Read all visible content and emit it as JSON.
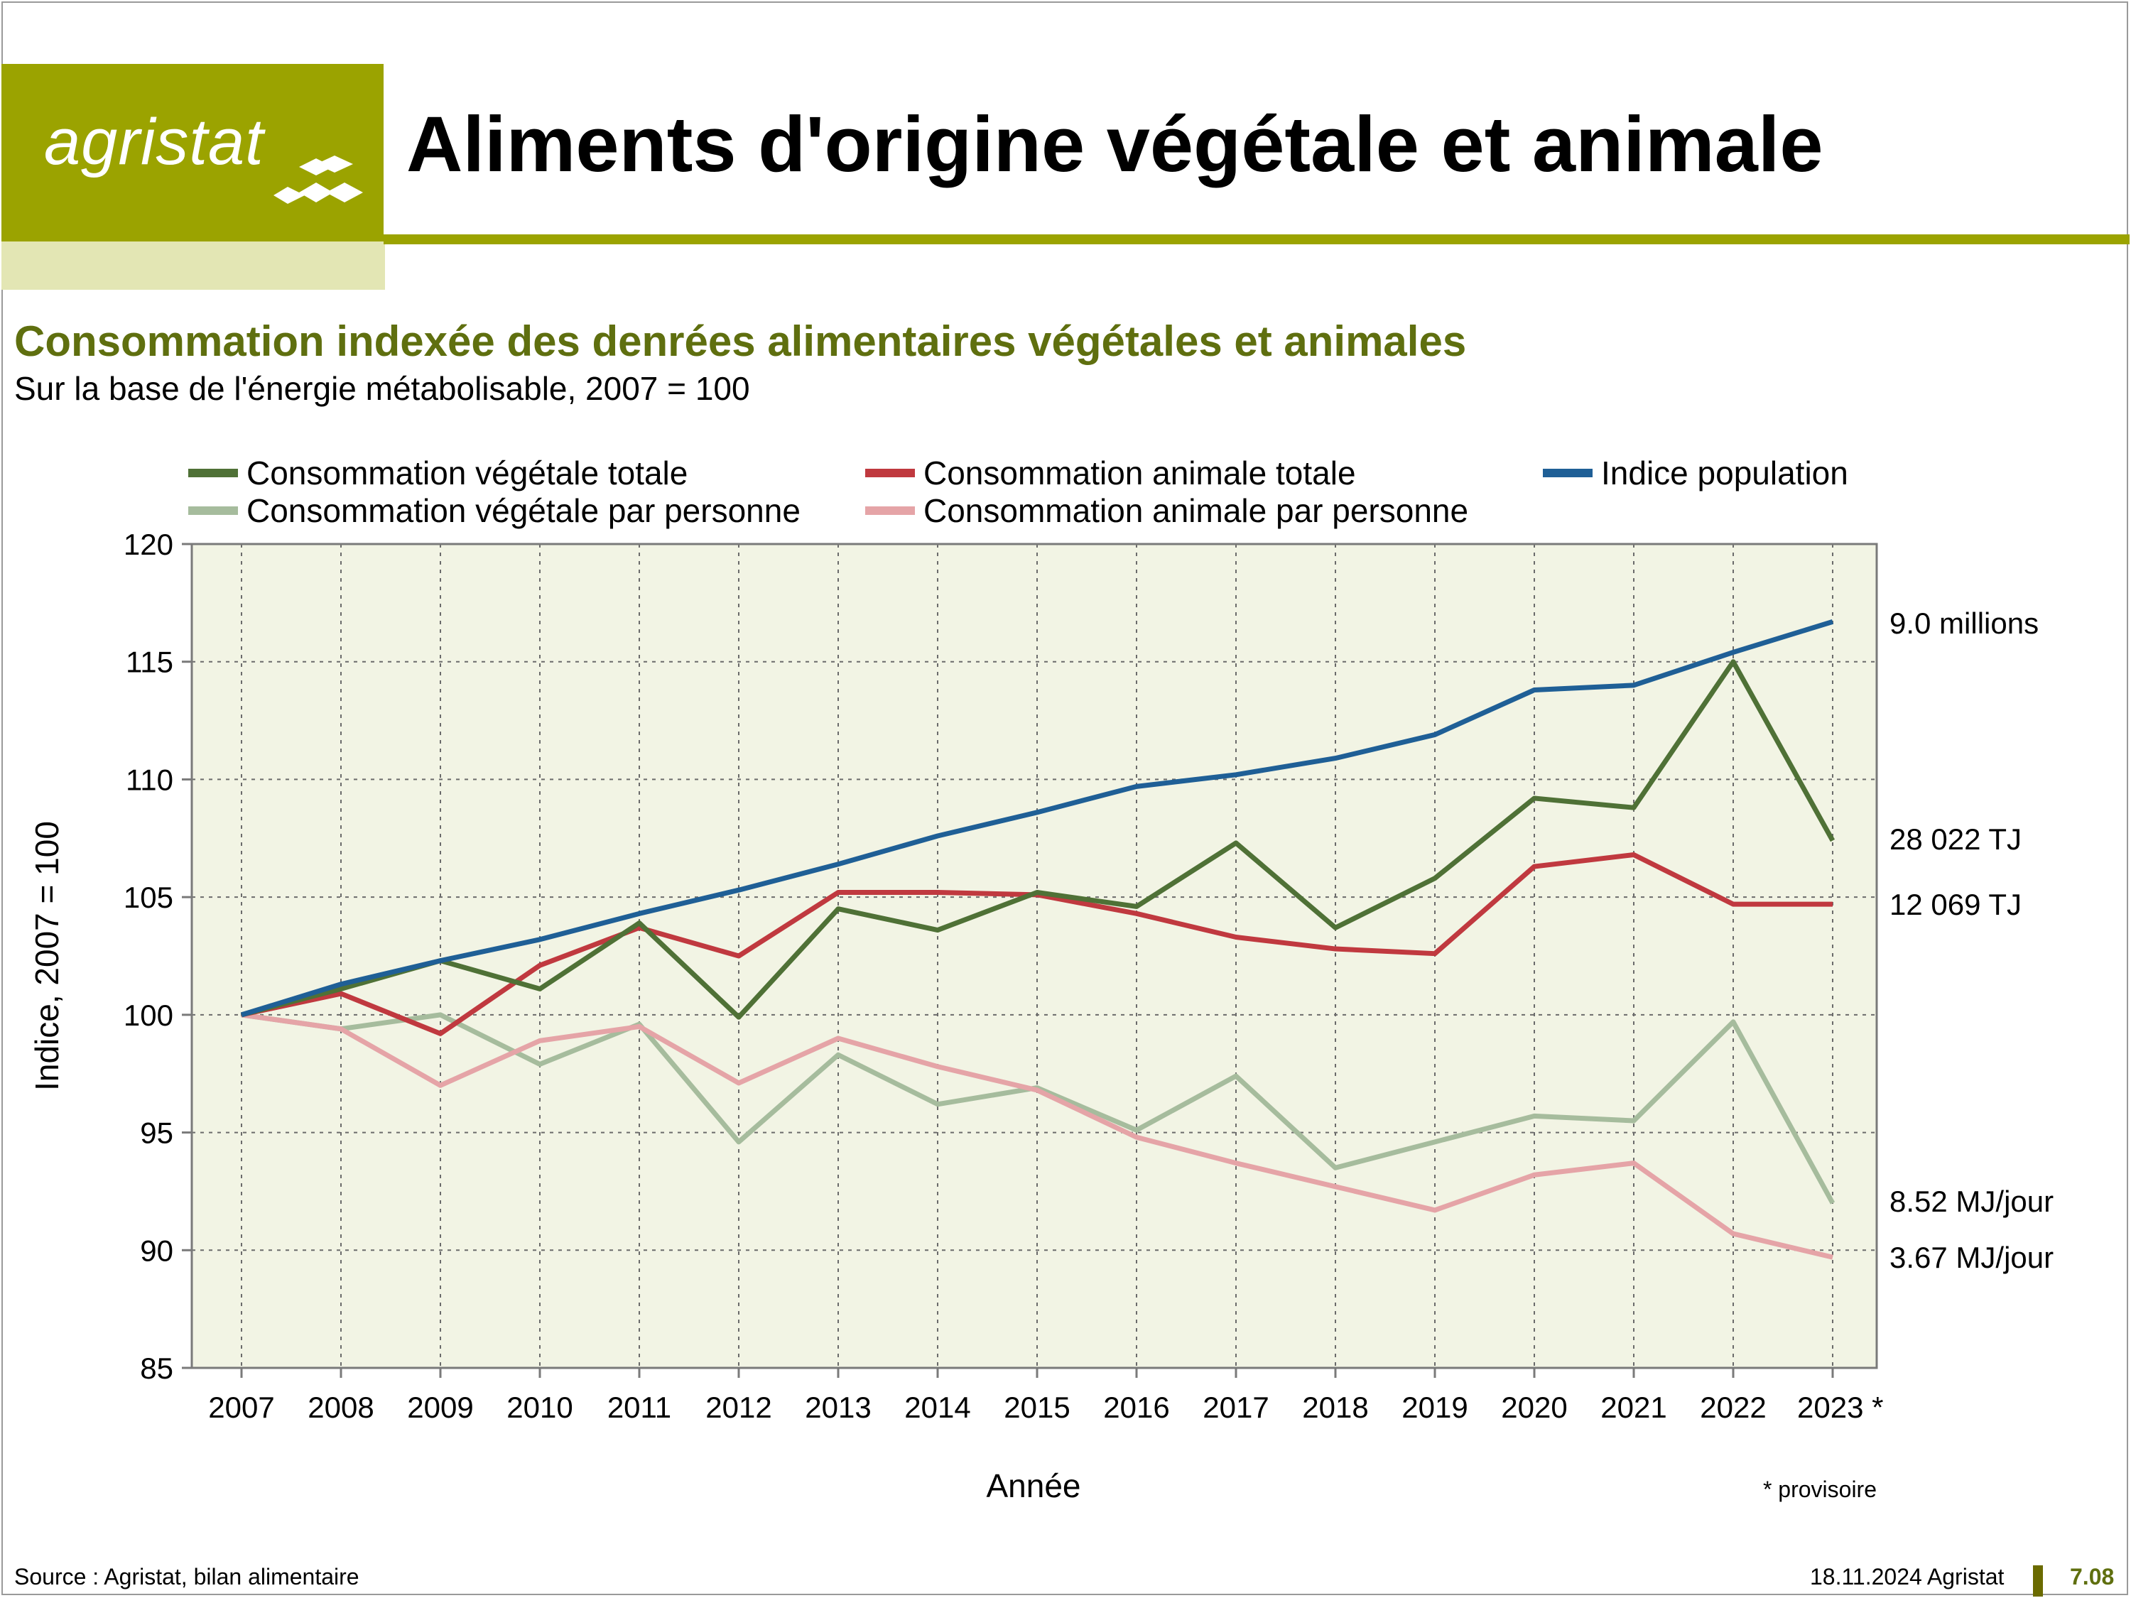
{
  "header": {
    "logo_text": "agristat",
    "title": "Aliments d'origine végétale et animale",
    "brand_color": "#9ba300"
  },
  "chart_title": "Consommation indexée des denrées alimentaires végétales et animales",
  "chart_subtitle": "Sur la base de l'énergie métabolisable, 2007 = 100",
  "footer": {
    "source": "Source : Agristat, bilan alimentaire",
    "date": "18.11.2024 Agristat",
    "page": "7.08"
  },
  "chart_data": {
    "type": "line",
    "xlabel": "Année",
    "ylabel": "Indice, 2007 = 100",
    "ylim": [
      85,
      120
    ],
    "yticks": [
      85,
      90,
      95,
      100,
      105,
      110,
      115,
      120
    ],
    "x": [
      "2007",
      "2008",
      "2009",
      "2010",
      "2011",
      "2012",
      "2013",
      "2014",
      "2015",
      "2016",
      "2017",
      "2018",
      "2019",
      "2020",
      "2021",
      "2022",
      "2023 *"
    ],
    "footnote": "* provisoire",
    "grid": true,
    "legend_position": "top",
    "background_color": "#f2f4e4",
    "series": [
      {
        "name": "Consommation végétale totale",
        "color": "#4f7136",
        "end_label": "28 022  TJ",
        "values": [
          100,
          101.1,
          102.3,
          101.1,
          103.9,
          99.9,
          104.5,
          103.6,
          105.2,
          104.6,
          107.3,
          103.7,
          105.8,
          109.2,
          108.8,
          115.0,
          107.4
        ]
      },
      {
        "name": "Consommation animale totale",
        "color": "#c0393f",
        "end_label": "12 069  TJ",
        "values": [
          100,
          100.9,
          99.2,
          102.1,
          103.7,
          102.5,
          105.2,
          105.2,
          105.1,
          104.3,
          103.3,
          102.8,
          102.6,
          106.3,
          106.8,
          104.7,
          104.7
        ]
      },
      {
        "name": "Indice population",
        "color": "#1f5f96",
        "end_label": "9.0  millions",
        "values": [
          100,
          101.3,
          102.3,
          103.2,
          104.3,
          105.3,
          106.4,
          107.6,
          108.6,
          109.7,
          110.2,
          110.9,
          111.9,
          113.8,
          114.0,
          115.4,
          116.7
        ]
      },
      {
        "name": "Consommation végétale par personne",
        "color": "#a6bc9d",
        "end_label": "8.52  MJ/jour",
        "values": [
          100,
          99.4,
          100.0,
          97.9,
          99.6,
          94.6,
          98.3,
          96.2,
          96.9,
          95.1,
          97.4,
          93.5,
          94.6,
          95.7,
          95.5,
          99.7,
          92.0
        ]
      },
      {
        "name": "Consommation animale par personne",
        "color": "#e5a4a7",
        "end_label": "3.67  MJ/jour",
        "values": [
          100,
          99.4,
          97.0,
          98.9,
          99.5,
          97.1,
          99.0,
          97.8,
          96.8,
          94.8,
          93.7,
          92.7,
          91.7,
          93.2,
          93.7,
          90.7,
          89.7
        ]
      }
    ]
  }
}
